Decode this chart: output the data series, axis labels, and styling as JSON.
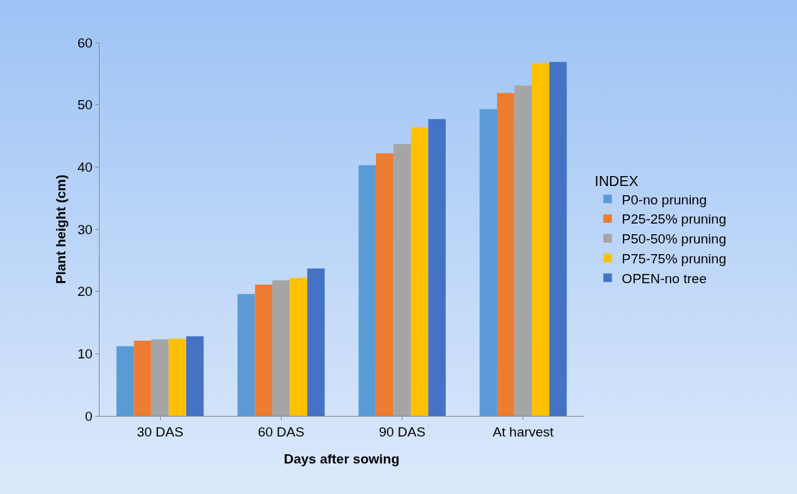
{
  "chart_data": {
    "type": "bar",
    "xlabel": "Days after sowing",
    "ylabel": "Plant height (cm)",
    "legend_title": "INDEX",
    "categories": [
      "30 DAS",
      "60 DAS",
      "90 DAS",
      "At harvest"
    ],
    "series": [
      {
        "name": "P0-no pruning",
        "color": "#5b9bd5",
        "values": [
          11.2,
          19.6,
          40.3,
          49.3
        ]
      },
      {
        "name": "P25-25% pruning",
        "color": "#ed7d31",
        "values": [
          12.1,
          21.1,
          42.2,
          51.9
        ]
      },
      {
        "name": "P50-50% pruning",
        "color": "#a5a5a5",
        "values": [
          12.3,
          21.8,
          43.7,
          53.1
        ]
      },
      {
        "name": "P75-75% pruning",
        "color": "#ffc000",
        "values": [
          12.4,
          22.2,
          46.4,
          56.7
        ]
      },
      {
        "name": "OPEN-no tree",
        "color": "#4472c4",
        "values": [
          12.8,
          23.7,
          47.7,
          56.9
        ]
      }
    ],
    "ylim": [
      0,
      60
    ],
    "yticks": [
      0,
      10,
      20,
      30,
      40,
      50,
      60
    ],
    "grid": false,
    "legend": "right"
  }
}
